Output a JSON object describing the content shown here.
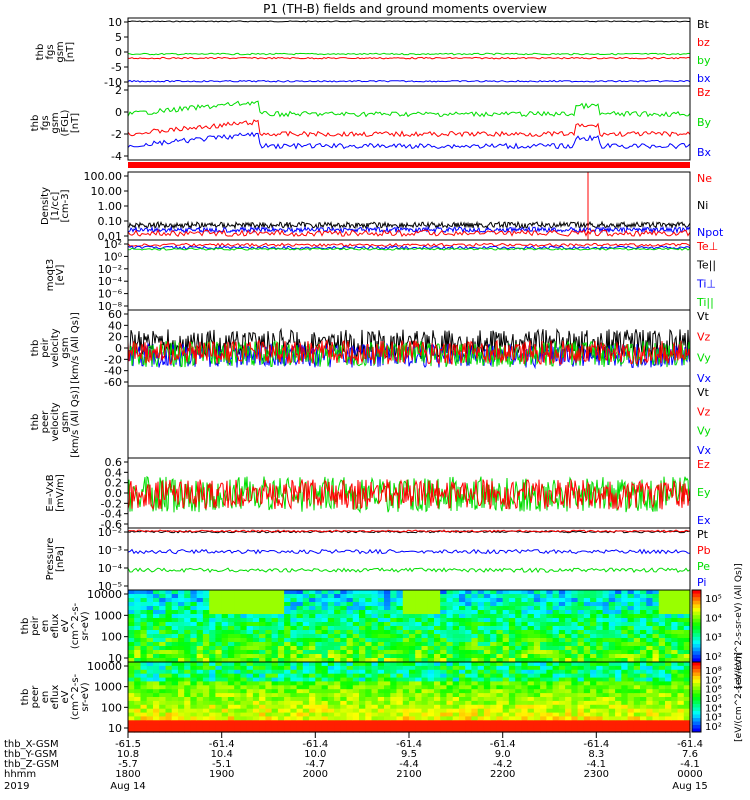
{
  "title": "P1 (TH-B) fields and ground moments overview",
  "colors": {
    "black": "#000000",
    "red": "#ff0000",
    "green": "#00dd00",
    "blue": "#0000ff"
  },
  "chart_data": [
    {
      "type": "line",
      "ylabel": [
        "thb",
        "fgs",
        "gsm",
        "[nT]"
      ],
      "yticks": [
        "10",
        "5",
        "0",
        "-5",
        "-10"
      ],
      "ylim": [
        -10,
        10
      ],
      "legend": [
        {
          "name": "Bt",
          "color": "black"
        },
        {
          "name": "bz",
          "color": "red"
        },
        {
          "name": "by",
          "color": "green"
        },
        {
          "name": "bx",
          "color": "blue"
        }
      ],
      "series": [
        {
          "name": "Bt",
          "level": 9
        },
        {
          "name": "bz",
          "level": -0.5
        },
        {
          "name": "by",
          "level": 1.5
        },
        {
          "name": "bx",
          "level": -8.5
        }
      ]
    },
    {
      "type": "line",
      "ylabel": [
        "thb",
        "fgs",
        "gsm",
        "(FGL)",
        "[nT]"
      ],
      "yticks": [
        "2",
        "0",
        "-2",
        "-4"
      ],
      "ylim": [
        -5,
        2
      ],
      "legend": [
        {
          "name": "Bz",
          "color": "red"
        },
        {
          "name": "By",
          "color": "green"
        },
        {
          "name": "Bx",
          "color": "blue"
        }
      ],
      "series": [
        {
          "name": "Bz",
          "level": -1.5
        },
        {
          "name": "By",
          "level": 0.5
        },
        {
          "name": "Bx",
          "level": -3
        }
      ]
    },
    {
      "type": "line",
      "ylabel": [
        "Density",
        "[1/cc]",
        "[cm-3]"
      ],
      "yticks": [
        "100.00",
        "10.00",
        "1.00",
        "0.10",
        "0.01"
      ],
      "ylim": [
        0.01,
        100
      ],
      "ylog": true,
      "legend": [
        {
          "name": "Ne",
          "color": "red"
        },
        {
          "name": "Ni",
          "color": "black"
        },
        {
          "name": "Npot",
          "color": "blue"
        }
      ]
    },
    {
      "type": "line",
      "ylabel": [
        "moqt3",
        "[eV]"
      ],
      "yticks": [
        "10²",
        "10⁰",
        "10⁻²",
        "10⁻⁴",
        "10⁻⁶",
        "10⁻⁸"
      ],
      "ylog": true,
      "legend": [
        {
          "name": "Te⊥",
          "color": "red"
        },
        {
          "name": "Te||",
          "color": "black"
        },
        {
          "name": "Ti⊥",
          "color": "blue"
        },
        {
          "name": "Ti||",
          "color": "green"
        }
      ]
    },
    {
      "type": "line",
      "ylabel": [
        "thb",
        "peir",
        "velocity",
        "gsm",
        "[km/s (All Qs)]"
      ],
      "yticks": [
        "60",
        "40",
        "20",
        "0",
        "-20",
        "-40",
        "-60"
      ],
      "ylim": [
        -60,
        60
      ],
      "legend": [
        {
          "name": "Vt",
          "color": "black"
        },
        {
          "name": "Vz",
          "color": "red"
        },
        {
          "name": "Vy",
          "color": "green"
        },
        {
          "name": "Vx",
          "color": "blue"
        }
      ]
    },
    {
      "type": "line",
      "ylabel": [
        "thb",
        "peer",
        "velocity",
        "gsm",
        "[km/s (All Qs)]"
      ],
      "yticks": [],
      "legend": [
        {
          "name": "Vt",
          "color": "black"
        },
        {
          "name": "Vz",
          "color": "red"
        },
        {
          "name": "Vy",
          "color": "green"
        },
        {
          "name": "Vx",
          "color": "blue"
        }
      ]
    },
    {
      "type": "line",
      "ylabel": [
        "E=-VxB",
        "[mV/m]"
      ],
      "yticks": [
        "0.6",
        "0.4",
        "0.2",
        "0.0",
        "-0.2",
        "-0.4",
        "-0.6"
      ],
      "ylim": [
        -0.6,
        0.6
      ],
      "legend": [
        {
          "name": "Ez",
          "color": "red"
        },
        {
          "name": "Ey",
          "color": "green"
        },
        {
          "name": "Ex",
          "color": "blue"
        }
      ]
    },
    {
      "type": "line",
      "ylabel": [
        "Pressure",
        "[nPa]"
      ],
      "yticks": [
        "10⁻²",
        "10⁻³",
        "10⁻⁴",
        "10⁻⁵"
      ],
      "ylog": true,
      "legend": [
        {
          "name": "Pt",
          "color": "black"
        },
        {
          "name": "Pb",
          "color": "red"
        },
        {
          "name": "Pe",
          "color": "green"
        },
        {
          "name": "Pi",
          "color": "blue"
        }
      ]
    },
    {
      "type": "heatmap",
      "ylabel": [
        "thb",
        "peir",
        "en",
        "eflux",
        "eV",
        "(cm^2-s-",
        "sr-eV)"
      ],
      "yticks": [
        "10000",
        "1000",
        "100",
        "10"
      ],
      "ylog": true,
      "colorbar": {
        "ticks": [
          "10⁵",
          "10⁴",
          "10³",
          "10²"
        ],
        "label": "[eV/(cm^2-s-sr-eV) (All Qs)]"
      }
    },
    {
      "type": "heatmap",
      "ylabel": [
        "thb",
        "peer",
        "en",
        "eflux",
        "eV",
        "(cm^2-s-",
        "sr-eV)"
      ],
      "yticks": [
        "10000",
        "1000",
        "100",
        "10"
      ],
      "ylog": true,
      "colorbar": {
        "ticks": [
          "10⁸",
          "10⁷",
          "10⁶",
          "10⁵",
          "10⁴",
          "10³",
          "10²"
        ],
        "label": "[eV/(cm^2-s-sr-eV)]"
      }
    }
  ],
  "x_axis": {
    "row_labels": [
      "thb_X-GSM",
      "thb_Y-GSM",
      "thb_Z-GSM",
      "hhmm",
      "2019"
    ],
    "columns": [
      [
        "-61.5",
        "10.8",
        "-5.7",
        "1800",
        "Aug 14"
      ],
      [
        "-61.4",
        "10.4",
        "-5.1",
        "1900",
        ""
      ],
      [
        "-61.4",
        "10.0",
        "-4.7",
        "2000",
        ""
      ],
      [
        "-61.4",
        "9.5",
        "-4.4",
        "2100",
        ""
      ],
      [
        "-61.4",
        "9.0",
        "-4.2",
        "2200",
        ""
      ],
      [
        "-61.4",
        "8.3",
        "-4.1",
        "2300",
        ""
      ],
      [
        "-61.4",
        "7.6",
        "-4.1",
        "0000",
        "Aug 15"
      ]
    ]
  }
}
